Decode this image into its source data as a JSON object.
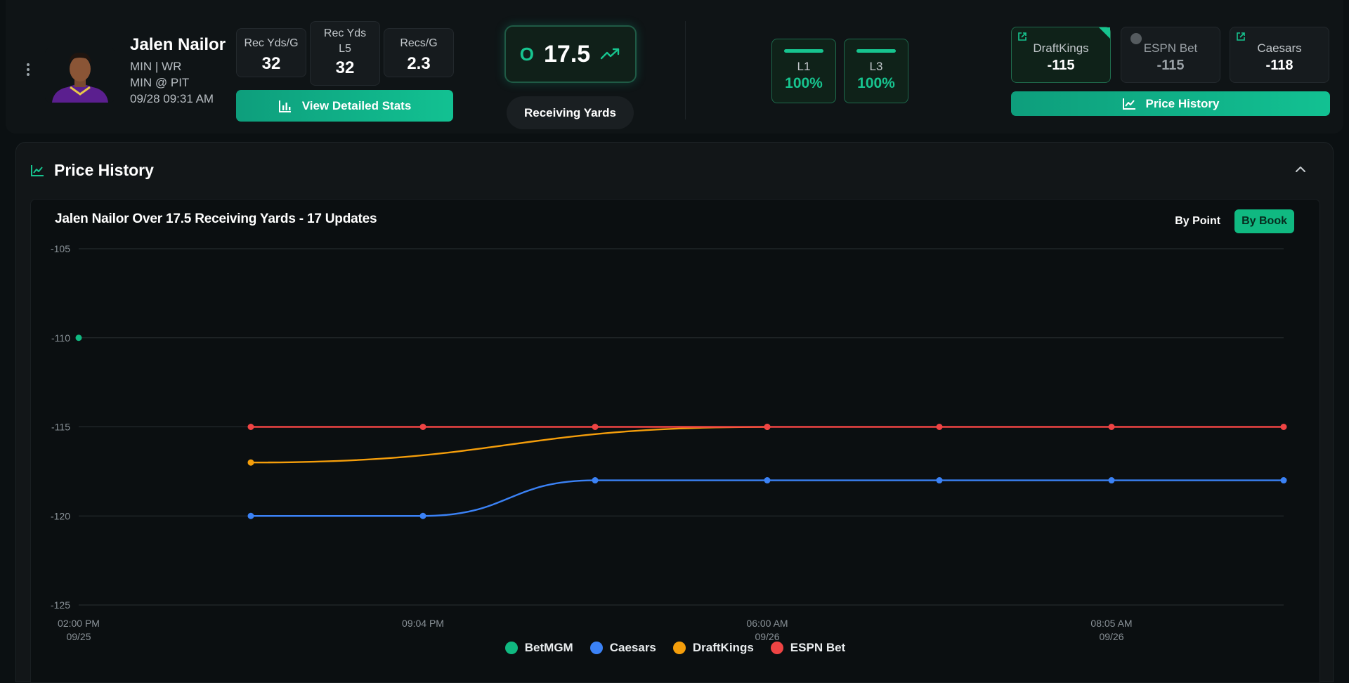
{
  "player": {
    "name": "Jalen Nailor",
    "team_pos": "MIN | WR",
    "matchup": "MIN @ PIT",
    "datetime": "09/28 09:31 AM"
  },
  "stats": [
    {
      "label": "Rec Yds/G",
      "value": "32"
    },
    {
      "label": "Rec Yds L5",
      "value": "32"
    },
    {
      "label": "Recs/G",
      "value": "2.3"
    }
  ],
  "view_stats_label": "View Detailed Stats",
  "line": {
    "side": "O",
    "value": "17.5",
    "market": "Receiving Yards"
  },
  "hit_rates": [
    {
      "label": "L1",
      "pct": "100%"
    },
    {
      "label": "L3",
      "pct": "100%"
    }
  ],
  "books": [
    {
      "name": "DraftKings",
      "odds": "-115"
    },
    {
      "name": "ESPN Bet",
      "odds": "-115"
    },
    {
      "name": "Caesars",
      "odds": "-118"
    }
  ],
  "price_history_button": "Price History",
  "panel": {
    "title": "Price History"
  },
  "chart_toggle": {
    "by_point": "By Point",
    "by_book": "By Book"
  },
  "chart_data": {
    "type": "line",
    "title": "Jalen Nailor Over 17.5 Receiving Yards - 17 Updates",
    "ylim": [
      -125,
      -105
    ],
    "yticks": [
      "-105",
      "-110",
      "-115",
      "-120",
      "-125"
    ],
    "x_ticks": [
      {
        "time": "02:00 PM",
        "date": "09/25"
      },
      {
        "time": "09:04 PM",
        "date": ""
      },
      {
        "time": "06:00 AM",
        "date": "09/26"
      },
      {
        "time": "08:05 AM",
        "date": "09/26"
      }
    ],
    "series": [
      {
        "name": "BetMGM",
        "color": "#10b981",
        "points": [
          [
            0,
            -110
          ]
        ]
      },
      {
        "name": "Caesars",
        "color": "#3b82f6",
        "points": [
          [
            1,
            -120
          ],
          [
            2,
            -120
          ],
          [
            3,
            -118
          ],
          [
            4,
            -118
          ],
          [
            5,
            -118
          ],
          [
            6,
            -118
          ],
          [
            7,
            -118
          ]
        ]
      },
      {
        "name": "DraftKings",
        "color": "#f59e0b",
        "points": [
          [
            1,
            -117
          ],
          [
            4,
            -115
          ]
        ]
      },
      {
        "name": "ESPN Bet",
        "color": "#ef4444",
        "points": [
          [
            1,
            -115
          ],
          [
            2,
            -115
          ],
          [
            3,
            -115
          ],
          [
            4,
            -115
          ],
          [
            5,
            -115
          ],
          [
            6,
            -115
          ],
          [
            7,
            -115
          ]
        ]
      }
    ]
  }
}
